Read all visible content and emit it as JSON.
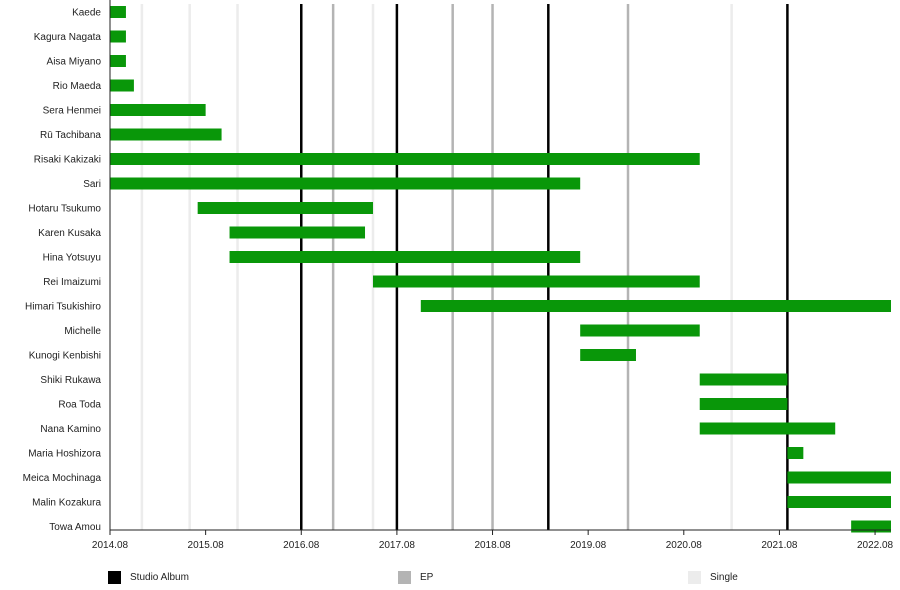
{
  "chart_data": {
    "type": "timeline",
    "members": [
      {
        "name": "Kaede",
        "start": "2014.08",
        "end": "2014.10"
      },
      {
        "name": "Kagura Nagata",
        "start": "2014.08",
        "end": "2014.10"
      },
      {
        "name": "Aisa Miyano",
        "start": "2014.08",
        "end": "2014.10"
      },
      {
        "name": "Rio Maeda",
        "start": "2014.08",
        "end": "2014.11"
      },
      {
        "name": "Sera Henmei",
        "start": "2014.08",
        "end": "2015.08"
      },
      {
        "name": "Rū Tachibana",
        "start": "2014.08",
        "end": "2015.10"
      },
      {
        "name": "Risaki Kakizaki",
        "start": "2014.08",
        "end": "2020.10"
      },
      {
        "name": "Sari",
        "start": "2014.08",
        "end": "2019.07"
      },
      {
        "name": "Hotaru Tsukumo",
        "start": "2015.07",
        "end": "2017.05"
      },
      {
        "name": "Karen Kusaka",
        "start": "2015.11",
        "end": "2017.04"
      },
      {
        "name": "Hina Yotsuyu",
        "start": "2015.11",
        "end": "2019.07"
      },
      {
        "name": "Rei Imaizumi",
        "start": "2017.05",
        "end": "2020.10"
      },
      {
        "name": "Himari Tsukishiro",
        "start": "2017.11",
        "end": "2022.10"
      },
      {
        "name": "Michelle",
        "start": "2019.07",
        "end": "2020.10"
      },
      {
        "name": "Kunogi Kenbishi",
        "start": "2019.07",
        "end": "2020.02"
      },
      {
        "name": "Shiki Rukawa",
        "start": "2020.10",
        "end": "2021.09"
      },
      {
        "name": "Roa Toda",
        "start": "2020.10",
        "end": "2021.09"
      },
      {
        "name": "Nana Kamino",
        "start": "2020.10",
        "end": "2022.03"
      },
      {
        "name": "Maria Hoshizora",
        "start": "2021.09",
        "end": "2021.11"
      },
      {
        "name": "Meica Mochinaga",
        "start": "2021.09",
        "end": "2022.10"
      },
      {
        "name": "Malin Kozakura",
        "start": "2021.09",
        "end": "2022.10"
      },
      {
        "name": "Towa Amou",
        "start": "2022.05",
        "end": "2022.10"
      }
    ],
    "x_range": [
      "2014.08",
      "2022.10"
    ],
    "x_ticks": [
      "2014.08",
      "2015.08",
      "2016.08",
      "2017.08",
      "2018.08",
      "2019.08",
      "2020.08",
      "2021.08",
      "2022.08"
    ],
    "releases": [
      {
        "type": "Single",
        "date": "2014.12"
      },
      {
        "type": "Single",
        "date": "2015.06"
      },
      {
        "type": "Single",
        "date": "2015.12"
      },
      {
        "type": "Studio Album",
        "date": "2016.08"
      },
      {
        "type": "EP",
        "date": "2016.12"
      },
      {
        "type": "Single",
        "date": "2017.05"
      },
      {
        "type": "Studio Album",
        "date": "2017.08"
      },
      {
        "type": "EP",
        "date": "2018.03"
      },
      {
        "type": "EP",
        "date": "2018.08"
      },
      {
        "type": "Studio Album",
        "date": "2019.03"
      },
      {
        "type": "EP",
        "date": "2020.01"
      },
      {
        "type": "Single",
        "date": "2021.02"
      },
      {
        "type": "Studio Album",
        "date": "2021.09"
      }
    ],
    "legend": [
      {
        "label": "Studio Album",
        "color": "#000000"
      },
      {
        "label": "EP",
        "color": "#b4b4b4"
      },
      {
        "label": "Single",
        "color": "#ececec"
      }
    ],
    "bar_color": "#099709",
    "grid": false
  }
}
